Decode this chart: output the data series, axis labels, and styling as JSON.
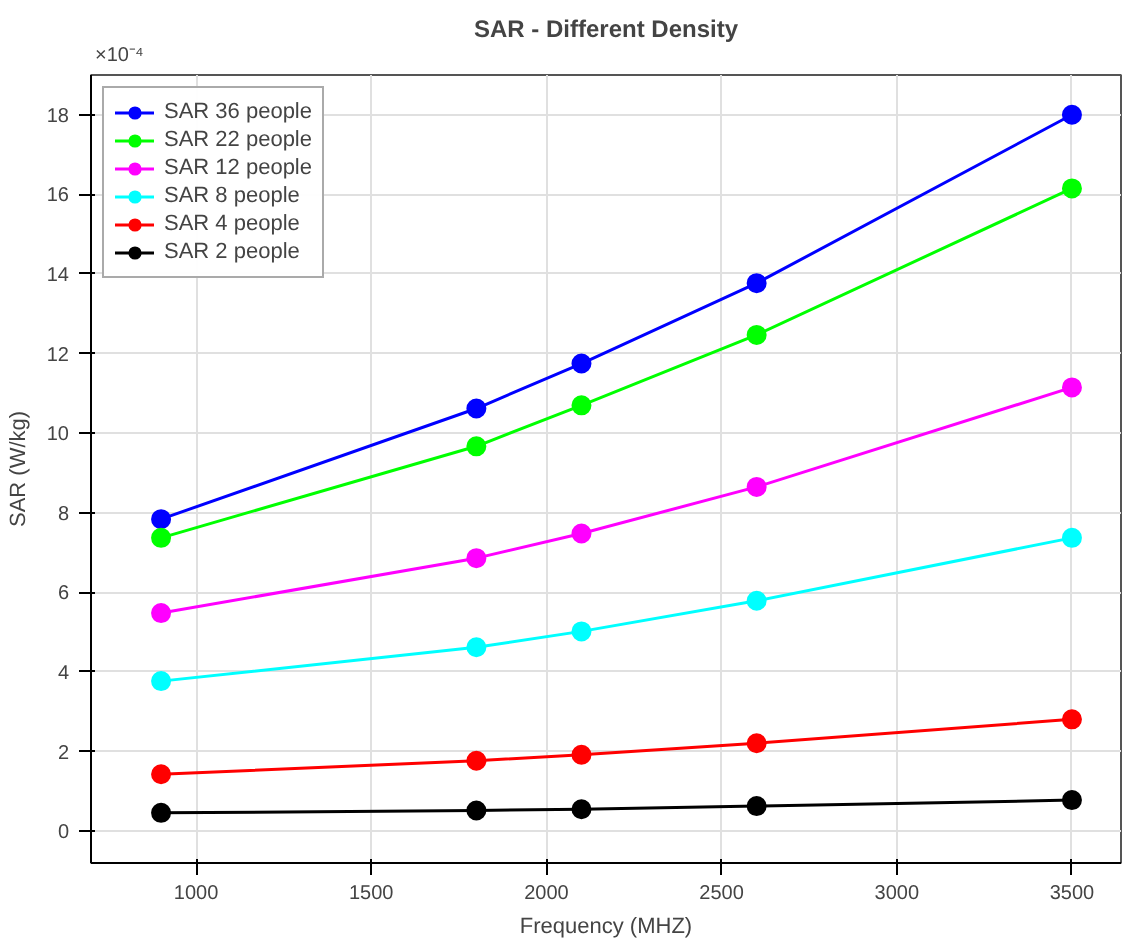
{
  "chart_data": {
    "type": "line",
    "title": "SAR - Different Density",
    "xlabel": "Frequency (MHZ)",
    "ylabel": "SAR (W/kg)",
    "annotations": [
      "×10⁻⁴"
    ],
    "x": [
      900,
      1800,
      2100,
      2600,
      3500
    ],
    "series": [
      {
        "name": "SAR 36 people",
        "color": "#0000ff",
        "values": [
          7.84,
          10.62,
          11.75,
          13.77,
          18.0
        ]
      },
      {
        "name": "SAR 22 people",
        "color": "#00ff00",
        "values": [
          7.37,
          9.67,
          10.7,
          12.47,
          16.15
        ]
      },
      {
        "name": "SAR 12 people",
        "color": "#ff00ff",
        "values": [
          5.48,
          6.86,
          7.48,
          8.65,
          11.15
        ]
      },
      {
        "name": "SAR 8 people",
        "color": "#00ffff",
        "values": [
          3.77,
          4.62,
          5.02,
          5.79,
          7.37
        ]
      },
      {
        "name": "SAR 4 people",
        "color": "#ff0000",
        "values": [
          1.43,
          1.77,
          1.92,
          2.21,
          2.81
        ]
      },
      {
        "name": "SAR 2 people",
        "color": "#000000",
        "values": [
          0.46,
          0.52,
          0.55,
          0.63,
          0.78
        ]
      }
    ],
    "xlim": [
      700,
      3640
    ],
    "xticks": [
      1000,
      1500,
      2000,
      2500,
      3000,
      3500
    ],
    "ylim": [
      -0.8,
      19
    ],
    "yticks": [
      0,
      2,
      4,
      6,
      8,
      10,
      12,
      14,
      16,
      18
    ],
    "grid": true,
    "legend": "top left",
    "marker": "circle",
    "line_style": "solid"
  }
}
